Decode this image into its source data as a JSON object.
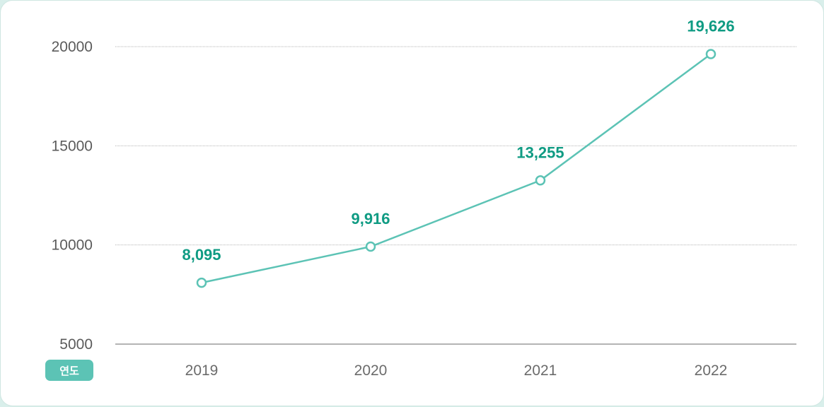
{
  "chart_data": {
    "type": "line",
    "categories": [
      "2019",
      "2020",
      "2021",
      "2022"
    ],
    "series": [
      {
        "values": [
          8095,
          9916,
          13255,
          19626
        ]
      }
    ],
    "data_labels": [
      "8,095",
      "9,916",
      "13,255",
      "19,626"
    ],
    "y_ticks": [
      5000,
      10000,
      15000,
      20000
    ],
    "ylim": [
      5000,
      20000
    ],
    "xlabel": "연도",
    "ylabel": "",
    "title": "",
    "grid": true,
    "colors": {
      "line": "#5cc3b5",
      "label": "#0f9b83",
      "badge": "#5cc3b5",
      "grid": "#b5b5b5",
      "axis": "#888888"
    }
  }
}
